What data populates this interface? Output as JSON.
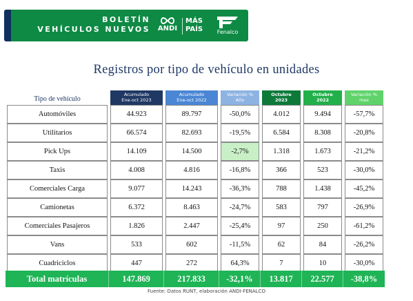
{
  "banner": {
    "title_line1": "BOLETÍN",
    "title_line2": "VEHÍCULOS NUEVOS",
    "logo_andi": "ANDI",
    "logo_mas": "MÁS",
    "logo_pais": "PAÍS",
    "logo_fenalco": "Fenalco",
    "bg_color": "#0e8a44",
    "stripe_color": "#0f2f5f"
  },
  "title": "Registros por tipo de vehículo en unidades",
  "table": {
    "type_header": "Tipo de vehículo",
    "columns": [
      {
        "line1": "Acumulado",
        "line2": "Ene-oct 2023",
        "color": "#1f3864",
        "bold": false
      },
      {
        "line1": "Acumulado",
        "line2": "Ene-oct 2022",
        "color": "#4a86d4",
        "bold": false
      },
      {
        "line1": "Variación %",
        "line2": "Año",
        "color": "#8db3e2",
        "bold": false
      },
      {
        "line1": "Octubre",
        "line2": "2023",
        "color": "#0d7a3a",
        "bold": true
      },
      {
        "line1": "Octubre",
        "line2": "2022",
        "color": "#22b04b",
        "bold": true
      },
      {
        "line1": "Variación %",
        "line2": "mes",
        "color": "#5fd36a",
        "bold": false
      }
    ],
    "rows": [
      {
        "label": "Automóviles",
        "values": [
          "44.923",
          "89.797",
          "-50,0%",
          "4.012",
          "9.494",
          "-57,7%"
        ]
      },
      {
        "label": "Utilitarios",
        "values": [
          "66.574",
          "82.693",
          "-19,5%",
          "6.584",
          "8.308",
          "-20,8%"
        ]
      },
      {
        "label": "Pick Ups",
        "values": [
          "14.109",
          "14.500",
          "-2,7%",
          "1.318",
          "1.673",
          "-21,2%"
        ]
      },
      {
        "label": "Taxis",
        "values": [
          "4.008",
          "4.816",
          "-16,8%",
          "366",
          "523",
          "-30,0%"
        ]
      },
      {
        "label": "Comerciales Carga",
        "values": [
          "9.077",
          "14.243",
          "-36,3%",
          "788",
          "1.438",
          "-45,2%"
        ]
      },
      {
        "label": "Camionetas",
        "values": [
          "6.372",
          "8.463",
          "-24,7%",
          "583",
          "797",
          "-26,9%"
        ]
      },
      {
        "label": "Comerciales Pasajeros",
        "values": [
          "1.826",
          "2.447",
          "-25,4%",
          "97",
          "250",
          "-61,2%"
        ]
      },
      {
        "label": "Vans",
        "values": [
          "533",
          "602",
          "-11,5%",
          "62",
          "84",
          "-26,2%"
        ]
      },
      {
        "label": "Cuadriciclos",
        "values": [
          "447",
          "272",
          "64,3%",
          "7",
          "10",
          "-30,0%"
        ]
      }
    ],
    "highlight_color": "#c9efc6",
    "total": {
      "label": "Total matrículas",
      "values": [
        "147.869",
        "217.833",
        "-32,1%",
        "13.817",
        "22.577",
        "-38,8%"
      ],
      "color": "#1fb456"
    }
  },
  "source": "Fuente: Datos RUNT, elaboración ANDI-FENALCO"
}
